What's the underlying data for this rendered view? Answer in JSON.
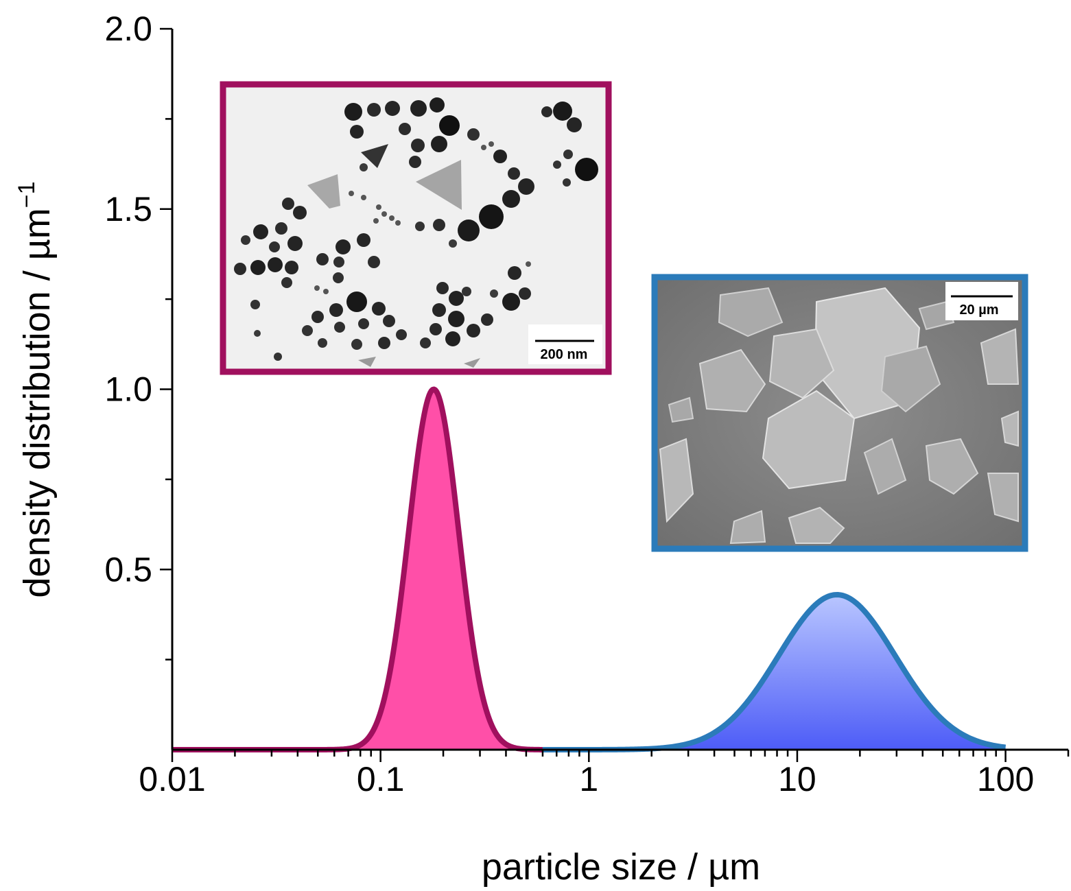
{
  "chart_data": {
    "type": "area",
    "xlabel": "particle size / µm",
    "ylabel": "density distribution / µm",
    "ylabel_superscript": "−1",
    "x_scale": "log",
    "xlim": [
      0.01,
      200
    ],
    "ylim": [
      0,
      2.0
    ],
    "x_ticks": [
      0.01,
      0.1,
      1,
      10,
      100
    ],
    "x_tick_labels": [
      "0.01",
      "0.1",
      "1",
      "10",
      "100"
    ],
    "y_ticks": [
      0.5,
      1.0,
      1.5,
      2.0
    ],
    "y_tick_labels": [
      "0.5",
      "1.0",
      "1.5",
      "2.0"
    ],
    "grid": false,
    "legend": "none",
    "series": [
      {
        "peak_x": 0.18,
        "peak_y": 1.0,
        "log_sigma": 0.12,
        "x_range": [
          0.01,
          0.6
        ],
        "line_color": "#a0105e",
        "fill_color": "#ff4fa8"
      },
      {
        "peak_x": 15.5,
        "peak_y": 0.43,
        "log_sigma": 0.28,
        "x_range": [
          0.6,
          100
        ],
        "line_color": "#2b7bba",
        "fill_top": "#b9c6ff",
        "fill_bottom": "#4d5cf7"
      }
    ],
    "insets": [
      {
        "kind": "TEM micrograph",
        "scale_bar": "200 nm",
        "border_color": "#a0105e"
      },
      {
        "kind": "SEM micrograph",
        "scale_bar": "20 µm",
        "border_color": "#2b7bba"
      }
    ]
  }
}
